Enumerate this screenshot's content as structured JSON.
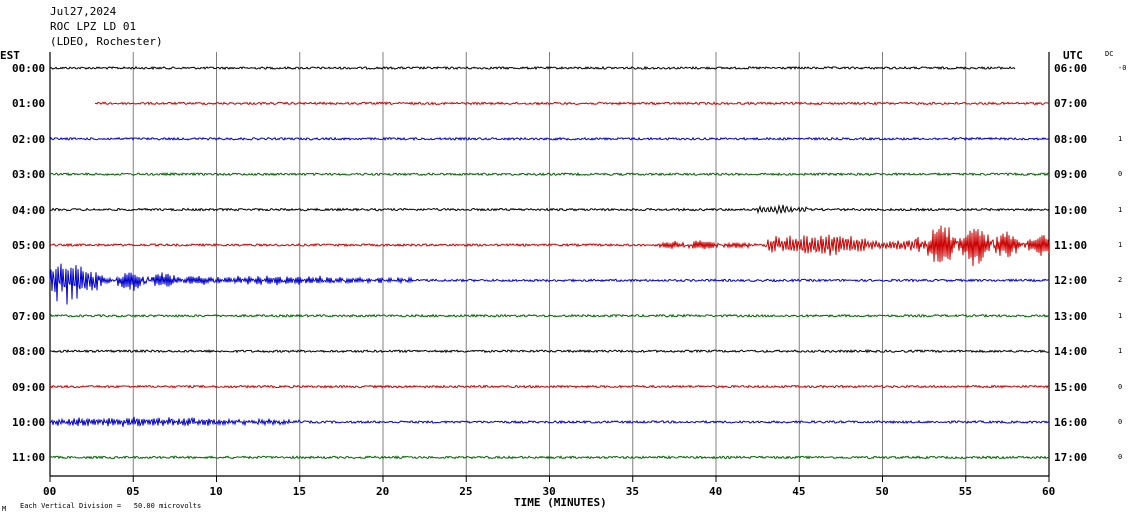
{
  "header": {
    "date": "Jul27,2024",
    "station": "ROC LPZ LD 01",
    "network": "(LDEO, Rochester)"
  },
  "axes": {
    "left_tz": "EST",
    "right_tz": "UTC",
    "dc_label": "DC",
    "xlabel": "TIME (MINUTES)",
    "scale_note": "Each Vertical Division =   50.00 microvolts",
    "corner_mark": "M"
  },
  "colors": {
    "background": "#ffffff",
    "grid": "#808080",
    "axis": "#000000",
    "traces": [
      "#000000",
      "#cc0000",
      "#0000cc",
      "#006600"
    ]
  },
  "chart_data": {
    "type": "line",
    "title": "",
    "x_ticks": [
      "00",
      "05",
      "10",
      "15",
      "20",
      "25",
      "30",
      "35",
      "40",
      "45",
      "50",
      "55",
      "60"
    ],
    "xlim": [
      0,
      60
    ],
    "rows": [
      {
        "est": "00:00",
        "utc": "06:00",
        "dc": "-0",
        "start_min": 0,
        "end_min": 58,
        "events": []
      },
      {
        "est": "01:00",
        "utc": "07:00",
        "dc": "",
        "start_min": 2.7,
        "end_min": 60,
        "events": []
      },
      {
        "est": "02:00",
        "utc": "08:00",
        "dc": "1",
        "start_min": 0,
        "end_min": 60,
        "events": []
      },
      {
        "est": "03:00",
        "utc": "09:00",
        "dc": "0",
        "start_min": 0,
        "end_min": 60,
        "events": []
      },
      {
        "est": "04:00",
        "utc": "10:00",
        "dc": "1",
        "start_min": 0,
        "end_min": 60,
        "events": [
          {
            "from": 42.5,
            "to": 45.5,
            "amp": 4,
            "period": 0.7
          }
        ]
      },
      {
        "est": "05:00",
        "utc": "11:00",
        "dc": "1",
        "start_min": 0,
        "end_min": 60,
        "events": [
          {
            "from": 36.6,
            "to": 43,
            "amp": 4,
            "period": 0.35
          },
          {
            "from": 43,
            "to": 52,
            "amp": 10,
            "period": 0.5
          },
          {
            "from": 52,
            "to": 60,
            "amp": 20,
            "period": 0.35
          }
        ]
      },
      {
        "est": "06:00",
        "utc": "12:00",
        "dc": "2",
        "start_min": 0,
        "end_min": 60,
        "events": [
          {
            "from": 0,
            "to": 3,
            "amp": 22,
            "period": 0.3
          },
          {
            "from": 3,
            "to": 10,
            "amp": 8,
            "period": 0.35
          },
          {
            "from": 10,
            "to": 22,
            "amp": 4,
            "period": 0.4
          }
        ]
      },
      {
        "est": "07:00",
        "utc": "13:00",
        "dc": "1",
        "start_min": 0,
        "end_min": 60,
        "events": []
      },
      {
        "est": "08:00",
        "utc": "14:00",
        "dc": "1",
        "start_min": 0,
        "end_min": 60,
        "events": []
      },
      {
        "est": "09:00",
        "utc": "15:00",
        "dc": "0",
        "start_min": 0,
        "end_min": 60,
        "events": []
      },
      {
        "est": "10:00",
        "utc": "16:00",
        "dc": "0",
        "start_min": 0,
        "end_min": 60,
        "events": [
          {
            "from": 0,
            "to": 15,
            "amp": 4,
            "period": 0.45
          }
        ]
      },
      {
        "est": "11:00",
        "utc": "17:00",
        "dc": "0",
        "start_min": 0,
        "end_min": 60,
        "events": []
      }
    ]
  }
}
